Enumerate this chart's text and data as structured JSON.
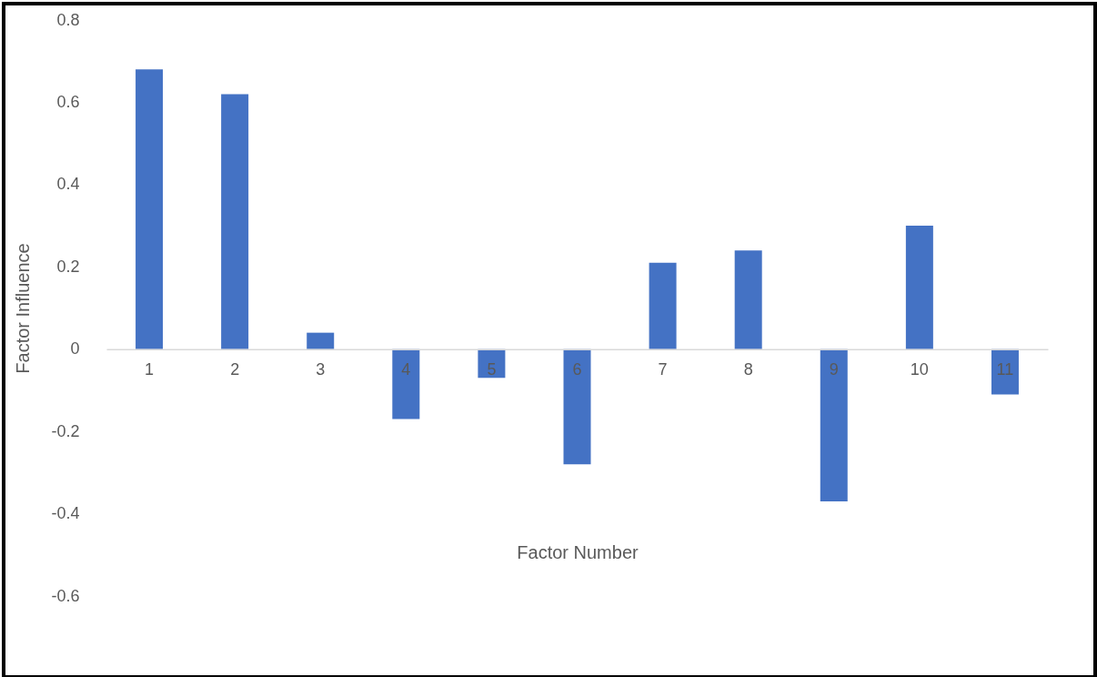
{
  "chart_data": {
    "type": "bar",
    "xlabel": "Factor Number",
    "ylabel": "Factor Influence",
    "categories": [
      "1",
      "2",
      "3",
      "4",
      "5",
      "6",
      "7",
      "8",
      "9",
      "10",
      "11"
    ],
    "values": [
      0.68,
      0.62,
      0.04,
      -0.17,
      -0.07,
      -0.28,
      0.21,
      0.24,
      -0.37,
      0.3,
      -0.11
    ],
    "color": "#4472c4",
    "ylim": [
      -0.6,
      0.8
    ],
    "yticks": [
      -0.6,
      -0.4,
      -0.2,
      {
        "value": 0,
        "label": "0"
      },
      0.2,
      0.4,
      0.6,
      0.8
    ],
    "grid": false
  }
}
